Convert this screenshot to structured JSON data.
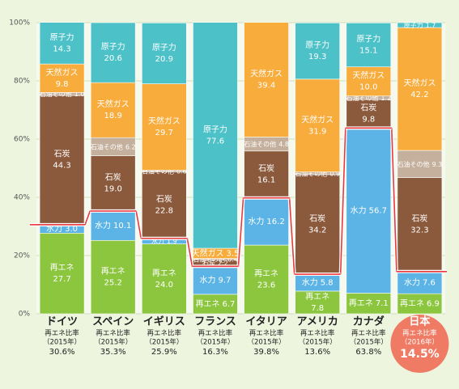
{
  "chart_data": {
    "type": "stacked-bar",
    "categories": [
      "ドイツ",
      "スペイン",
      "イギリス",
      "フランス",
      "イタリア",
      "アメリカ",
      "カナダ",
      "日本"
    ],
    "series": [
      {
        "name": "再エネ",
        "color": "#8cc63f",
        "values": [
          27.7,
          25.2,
          24.0,
          6.7,
          23.6,
          7.8,
          7.1,
          6.9
        ],
        "value_labels": [
          "27.7",
          "25.2",
          "24.0",
          "6.7",
          "23.6",
          "7.8",
          "7.1",
          "6.9"
        ]
      },
      {
        "name": "水力",
        "color": "#5bb4e5",
        "values": [
          3.0,
          10.1,
          1.9,
          9.7,
          16.2,
          5.8,
          56.7,
          7.6
        ],
        "value_labels": [
          "3.0",
          "10.1",
          "1.9",
          "9.7",
          "16.2",
          "5.8",
          "56.7",
          "7.6"
        ]
      },
      {
        "name": "石炭",
        "color": "#8b5a3c",
        "values": [
          44.3,
          19.0,
          22.8,
          2.2,
          16.1,
          34.2,
          9.8,
          32.3
        ],
        "value_labels": [
          "44.3",
          "19.0",
          "22.8",
          "2.2",
          "16.1",
          "34.2",
          "9.8",
          "32.3"
        ]
      },
      {
        "name": "石油その他",
        "color": "#c4b09c",
        "values": [
          1.0,
          6.2,
          0.6,
          0.4,
          4.8,
          0.9,
          1.2,
          9.3
        ],
        "value_labels": [
          "1.0",
          "6.2",
          "0.6",
          "0.4",
          "4.8",
          "0.9",
          "1.2",
          "9.3"
        ]
      },
      {
        "name": "天然ガス",
        "color": "#f8ac3c",
        "values": [
          9.8,
          18.9,
          29.7,
          3.5,
          39.4,
          31.9,
          10.0,
          42.2
        ],
        "value_labels": [
          "9.8",
          "18.9",
          "29.7",
          "3.5",
          "39.4",
          "31.9",
          "10.0",
          "42.2"
        ]
      },
      {
        "name": "原子力",
        "color": "#4cc2c8",
        "values": [
          14.3,
          20.6,
          20.9,
          77.6,
          null,
          19.3,
          15.1,
          1.7
        ],
        "value_labels": [
          "14.3",
          "20.6",
          "20.9",
          "77.6",
          null,
          "19.3",
          "15.1",
          "1.7"
        ]
      }
    ],
    "ratio_title": "再エネ比率",
    "ratio_years": [
      "（2015年）",
      "（2015年）",
      "（2015年）",
      "（2015年）",
      "（2015年）",
      "（2015年）",
      "（2015年）",
      "（2016年）"
    ],
    "ratio": {
      "color": "#e8383d",
      "values": [
        30.6,
        35.3,
        25.9,
        16.3,
        39.8,
        13.6,
        63.8,
        14.5
      ],
      "value_labels": [
        "30.6%",
        "35.3%",
        "25.9%",
        "16.3%",
        "39.8%",
        "13.6%",
        "63.8%",
        "14.5%"
      ]
    },
    "ylim": [
      0,
      100
    ],
    "yticks": [
      {
        "value": 0,
        "label": "0%"
      },
      {
        "value": 20,
        "label": "20%"
      },
      {
        "value": 40,
        "label": "40%"
      },
      {
        "value": 60,
        "label": "60%"
      },
      {
        "value": 80,
        "label": "80%"
      },
      {
        "value": 100,
        "label": "100%"
      }
    ],
    "grid": true
  }
}
